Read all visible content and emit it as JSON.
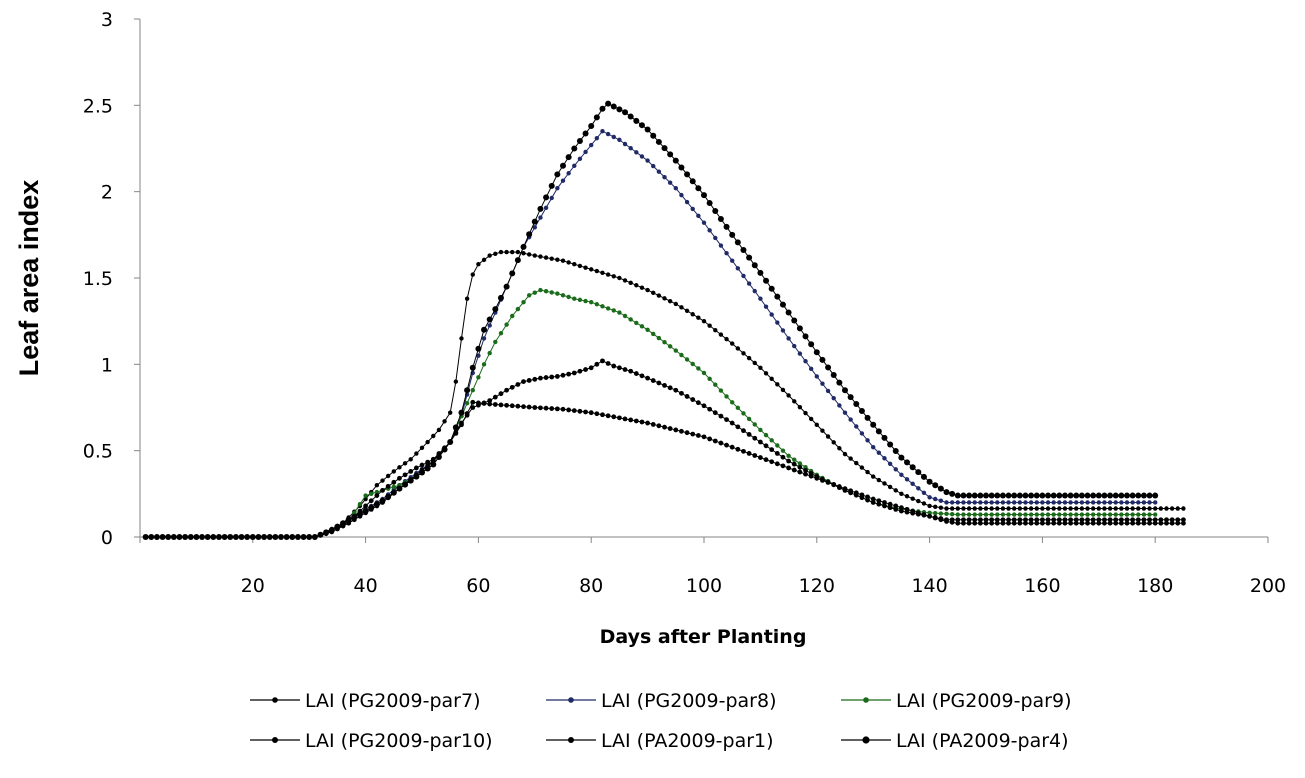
{
  "chart_data": {
    "type": "line",
    "title": "",
    "xlabel": "Days after Planting",
    "ylabel": "Leaf area index",
    "xlim": [
      0,
      200
    ],
    "ylim": [
      0,
      3
    ],
    "x_ticks": [
      20,
      40,
      60,
      80,
      100,
      120,
      140,
      160,
      180,
      200
    ],
    "y_ticks": [
      0,
      0.5,
      1,
      1.5,
      2,
      2.5,
      3
    ],
    "grid": false,
    "legend_position": "bottom",
    "series": [
      {
        "name": "LAI (PG2009-par7)",
        "color": "#000000",
        "marker_size": 2.2,
        "end_day": 185,
        "points": [
          [
            1,
            0
          ],
          [
            31,
            0
          ],
          [
            33,
            0.03
          ],
          [
            36,
            0.08
          ],
          [
            39,
            0.18
          ],
          [
            42,
            0.3
          ],
          [
            45,
            0.38
          ],
          [
            48,
            0.45
          ],
          [
            51,
            0.55
          ],
          [
            53,
            0.62
          ],
          [
            55,
            0.72
          ],
          [
            56,
            0.9
          ],
          [
            57,
            1.15
          ],
          [
            58,
            1.38
          ],
          [
            59,
            1.52
          ],
          [
            60,
            1.58
          ],
          [
            62,
            1.63
          ],
          [
            64,
            1.65
          ],
          [
            67,
            1.65
          ],
          [
            70,
            1.63
          ],
          [
            75,
            1.6
          ],
          [
            80,
            1.55
          ],
          [
            85,
            1.5
          ],
          [
            90,
            1.43
          ],
          [
            95,
            1.35
          ],
          [
            100,
            1.25
          ],
          [
            105,
            1.12
          ],
          [
            110,
            0.98
          ],
          [
            115,
            0.82
          ],
          [
            120,
            0.65
          ],
          [
            125,
            0.48
          ],
          [
            130,
            0.35
          ],
          [
            135,
            0.25
          ],
          [
            140,
            0.18
          ],
          [
            143,
            0.165
          ],
          [
            185,
            0.165
          ]
        ]
      },
      {
        "name": "LAI (PG2009-par8)",
        "color": "#1f2a66",
        "marker_size": 2.2,
        "end_day": 180,
        "points": [
          [
            1,
            0
          ],
          [
            31,
            0
          ],
          [
            34,
            0.04
          ],
          [
            37,
            0.1
          ],
          [
            40,
            0.16
          ],
          [
            43,
            0.22
          ],
          [
            46,
            0.3
          ],
          [
            49,
            0.37
          ],
          [
            52,
            0.44
          ],
          [
            55,
            0.55
          ],
          [
            57,
            0.7
          ],
          [
            59,
            0.95
          ],
          [
            61,
            1.15
          ],
          [
            63,
            1.3
          ],
          [
            65,
            1.45
          ],
          [
            68,
            1.68
          ],
          [
            71,
            1.85
          ],
          [
            74,
            2.02
          ],
          [
            77,
            2.15
          ],
          [
            80,
            2.27
          ],
          [
            82,
            2.35
          ],
          [
            85,
            2.3
          ],
          [
            90,
            2.18
          ],
          [
            95,
            2.02
          ],
          [
            100,
            1.82
          ],
          [
            105,
            1.6
          ],
          [
            110,
            1.38
          ],
          [
            115,
            1.15
          ],
          [
            120,
            0.93
          ],
          [
            125,
            0.72
          ],
          [
            130,
            0.52
          ],
          [
            135,
            0.36
          ],
          [
            140,
            0.23
          ],
          [
            143,
            0.2
          ],
          [
            145,
            0.2
          ],
          [
            180,
            0.2
          ]
        ]
      },
      {
        "name": "LAI (PG2009-par9)",
        "color": "#1a6b1a",
        "marker_size": 2.2,
        "end_day": 180,
        "points": [
          [
            1,
            0
          ],
          [
            31,
            0
          ],
          [
            34,
            0.04
          ],
          [
            37,
            0.09
          ],
          [
            40,
            0.24
          ],
          [
            43,
            0.27
          ],
          [
            46,
            0.3
          ],
          [
            49,
            0.35
          ],
          [
            52,
            0.42
          ],
          [
            55,
            0.55
          ],
          [
            57,
            0.7
          ],
          [
            59,
            0.85
          ],
          [
            61,
            1.0
          ],
          [
            63,
            1.13
          ],
          [
            66,
            1.28
          ],
          [
            69,
            1.4
          ],
          [
            71,
            1.43
          ],
          [
            74,
            1.41
          ],
          [
            77,
            1.38
          ],
          [
            80,
            1.36
          ],
          [
            85,
            1.3
          ],
          [
            90,
            1.2
          ],
          [
            95,
            1.08
          ],
          [
            100,
            0.95
          ],
          [
            105,
            0.78
          ],
          [
            110,
            0.62
          ],
          [
            115,
            0.47
          ],
          [
            120,
            0.36
          ],
          [
            125,
            0.27
          ],
          [
            130,
            0.2
          ],
          [
            135,
            0.16
          ],
          [
            140,
            0.14
          ],
          [
            145,
            0.13
          ],
          [
            180,
            0.13
          ]
        ]
      },
      {
        "name": "LAI (PG2009-par10)",
        "color": "#000000",
        "marker_size": 2.4,
        "end_day": 185,
        "points": [
          [
            1,
            0
          ],
          [
            31,
            0
          ],
          [
            34,
            0.03
          ],
          [
            37,
            0.08
          ],
          [
            40,
            0.14
          ],
          [
            43,
            0.2
          ],
          [
            46,
            0.28
          ],
          [
            49,
            0.36
          ],
          [
            52,
            0.44
          ],
          [
            55,
            0.55
          ],
          [
            57,
            0.66
          ],
          [
            59,
            0.75
          ],
          [
            62,
            0.79
          ],
          [
            65,
            0.85
          ],
          [
            68,
            0.9
          ],
          [
            71,
            0.92
          ],
          [
            74,
            0.93
          ],
          [
            77,
            0.95
          ],
          [
            80,
            0.98
          ],
          [
            82,
            1.02
          ],
          [
            84,
            0.99
          ],
          [
            87,
            0.96
          ],
          [
            90,
            0.92
          ],
          [
            95,
            0.85
          ],
          [
            100,
            0.76
          ],
          [
            105,
            0.66
          ],
          [
            110,
            0.55
          ],
          [
            115,
            0.44
          ],
          [
            120,
            0.35
          ],
          [
            125,
            0.27
          ],
          [
            130,
            0.2
          ],
          [
            135,
            0.15
          ],
          [
            140,
            0.12
          ],
          [
            143,
            0.1
          ],
          [
            145,
            0.1
          ],
          [
            185,
            0.1
          ]
        ]
      },
      {
        "name": "LAI (PA2009-par1)",
        "color": "#000000",
        "marker_size": 2.4,
        "end_day": 185,
        "points": [
          [
            1,
            0
          ],
          [
            31,
            0
          ],
          [
            34,
            0.03
          ],
          [
            37,
            0.09
          ],
          [
            40,
            0.18
          ],
          [
            43,
            0.27
          ],
          [
            46,
            0.34
          ],
          [
            49,
            0.4
          ],
          [
            52,
            0.45
          ],
          [
            55,
            0.55
          ],
          [
            57,
            0.65
          ],
          [
            59,
            0.78
          ],
          [
            62,
            0.77
          ],
          [
            66,
            0.76
          ],
          [
            70,
            0.75
          ],
          [
            75,
            0.74
          ],
          [
            80,
            0.72
          ],
          [
            85,
            0.69
          ],
          [
            90,
            0.66
          ],
          [
            95,
            0.62
          ],
          [
            100,
            0.58
          ],
          [
            105,
            0.52
          ],
          [
            110,
            0.46
          ],
          [
            115,
            0.4
          ],
          [
            120,
            0.34
          ],
          [
            125,
            0.28
          ],
          [
            130,
            0.22
          ],
          [
            135,
            0.17
          ],
          [
            140,
            0.12
          ],
          [
            143,
            0.09
          ],
          [
            145,
            0.08
          ],
          [
            185,
            0.08
          ]
        ]
      },
      {
        "name": "LAI (PA2009-par4)",
        "color": "#000000",
        "marker_size": 3,
        "end_day": 180,
        "points": [
          [
            1,
            0
          ],
          [
            31,
            0
          ],
          [
            34,
            0.04
          ],
          [
            37,
            0.1
          ],
          [
            40,
            0.15
          ],
          [
            43,
            0.21
          ],
          [
            46,
            0.28
          ],
          [
            49,
            0.35
          ],
          [
            52,
            0.42
          ],
          [
            55,
            0.55
          ],
          [
            57,
            0.72
          ],
          [
            59,
            0.98
          ],
          [
            61,
            1.2
          ],
          [
            63,
            1.32
          ],
          [
            65,
            1.45
          ],
          [
            68,
            1.68
          ],
          [
            71,
            1.9
          ],
          [
            74,
            2.1
          ],
          [
            77,
            2.25
          ],
          [
            80,
            2.38
          ],
          [
            82,
            2.48
          ],
          [
            83,
            2.51
          ],
          [
            86,
            2.46
          ],
          [
            90,
            2.36
          ],
          [
            95,
            2.18
          ],
          [
            100,
            1.98
          ],
          [
            105,
            1.75
          ],
          [
            110,
            1.53
          ],
          [
            115,
            1.3
          ],
          [
            120,
            1.07
          ],
          [
            125,
            0.85
          ],
          [
            130,
            0.65
          ],
          [
            135,
            0.46
          ],
          [
            140,
            0.32
          ],
          [
            143,
            0.26
          ],
          [
            145,
            0.24
          ],
          [
            180,
            0.24
          ]
        ]
      }
    ]
  }
}
